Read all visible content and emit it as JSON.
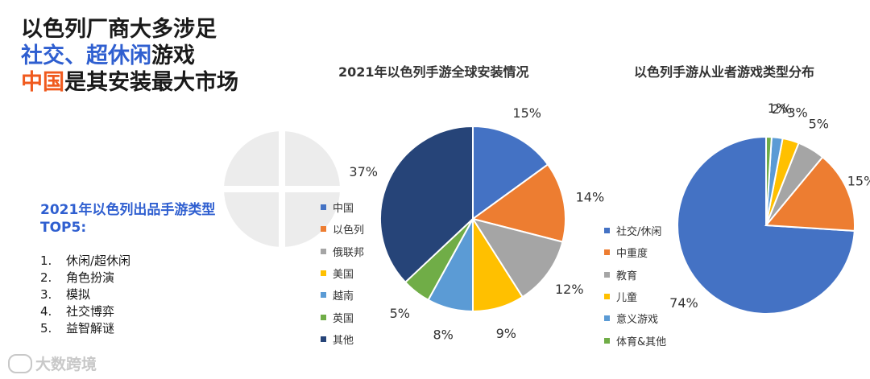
{
  "headline": {
    "line1": "以色列厂商大多涉足",
    "line2a": "社交、超休闲",
    "line2b": "游戏",
    "line3a": "中国",
    "line3b": "是其安装最大市场"
  },
  "top5": {
    "title_line1": "2021年以色列出品手游类型",
    "title_line2": "TOP5:",
    "items": [
      {
        "num": "1.",
        "label": "休闲/超休闲"
      },
      {
        "num": "2.",
        "label": "角色扮演"
      },
      {
        "num": "3.",
        "label": "模拟"
      },
      {
        "num": "4.",
        "label": "社交博弈"
      },
      {
        "num": "5.",
        "label": "益智解谜"
      }
    ]
  },
  "brand": {
    "name": "大数跨境"
  },
  "chart_data": [
    {
      "type": "pie",
      "title": "2021年以色列手游全球安装情况",
      "categories": [
        "中国",
        "以色列",
        "俄联邦",
        "美国",
        "越南",
        "英国",
        "其他"
      ],
      "values": [
        15,
        14,
        12,
        9,
        8,
        5,
        37
      ],
      "labels": [
        "15%",
        "14%",
        "12%",
        "9%",
        "8%",
        "5%",
        "37%"
      ],
      "colors": [
        "#4472c4",
        "#ed7d31",
        "#a5a5a5",
        "#ffc000",
        "#5b9bd5",
        "#70ad47",
        "#264478"
      ],
      "legend_position": "left"
    },
    {
      "type": "pie",
      "title": "以色列手游从业者游戏类型分布",
      "categories": [
        "社交/休闲",
        "中重度",
        "教育",
        "儿童",
        "意义游戏",
        "体育&其他"
      ],
      "values": [
        74,
        15,
        5,
        3,
        2,
        1
      ],
      "labels": [
        "74%",
        "15%",
        "5%",
        "3%",
        "2%",
        "1%"
      ],
      "colors": [
        "#4472c4",
        "#ed7d31",
        "#a5a5a5",
        "#ffc000",
        "#5b9bd5",
        "#70ad47"
      ],
      "legend_position": "left"
    }
  ]
}
